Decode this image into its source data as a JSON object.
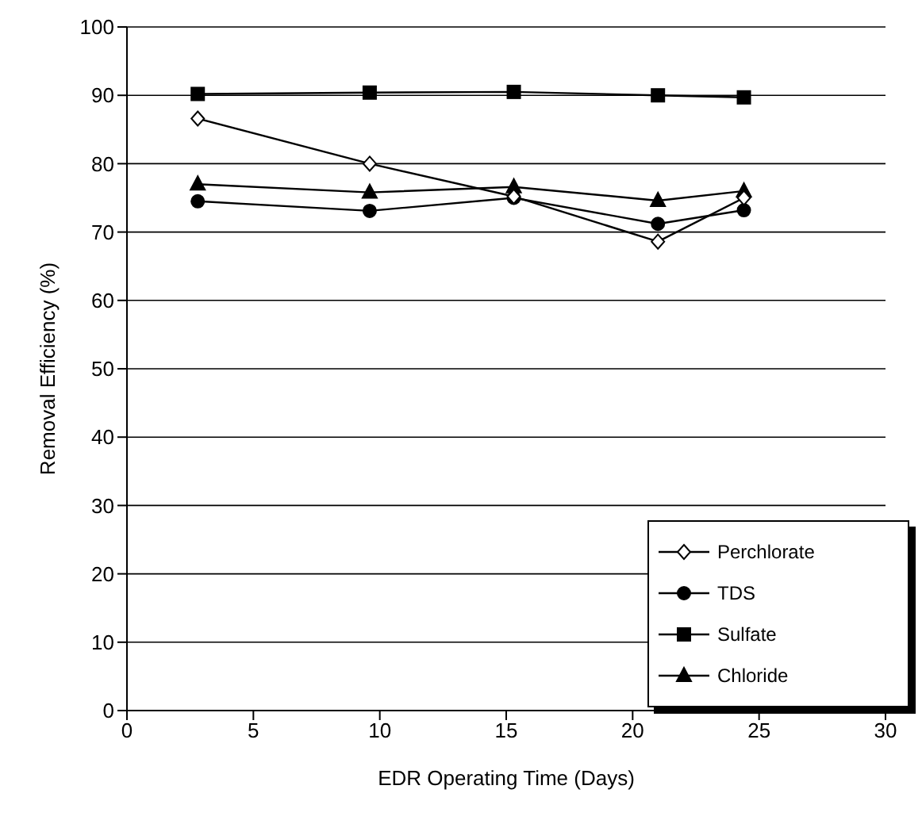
{
  "chart_data": {
    "type": "line",
    "xlabel": "EDR Operating Time (Days)",
    "ylabel": "Removal Efficiency (%)",
    "x": [
      2.8,
      9.6,
      15.3,
      21.0,
      24.4
    ],
    "series": [
      {
        "name": "Perchlorate",
        "color": "#000000",
        "marker": "diamond",
        "values": [
          86.6,
          80,
          75.2,
          68.6,
          75
        ]
      },
      {
        "name": "TDS",
        "color": "#000000",
        "marker": "circle",
        "values": [
          74.5,
          73.1,
          75,
          71.2,
          73.2
        ]
      },
      {
        "name": "Sulfate",
        "color": "#000000",
        "marker": "square",
        "values": [
          90.2,
          90.4,
          90.5,
          90,
          89.7
        ]
      },
      {
        "name": "Chloride",
        "color": "#000000",
        "marker": "triangle",
        "values": [
          77,
          75.8,
          76.6,
          74.6,
          76
        ]
      }
    ],
    "xlim": [
      0,
      30
    ],
    "xticks": [
      0,
      5,
      10,
      15,
      20,
      25,
      30
    ],
    "ylim": [
      0,
      100
    ],
    "yticks": [
      0,
      10,
      20,
      30,
      40,
      50,
      60,
      70,
      80,
      90,
      100
    ],
    "grid": "y",
    "legend": "bottom right"
  }
}
